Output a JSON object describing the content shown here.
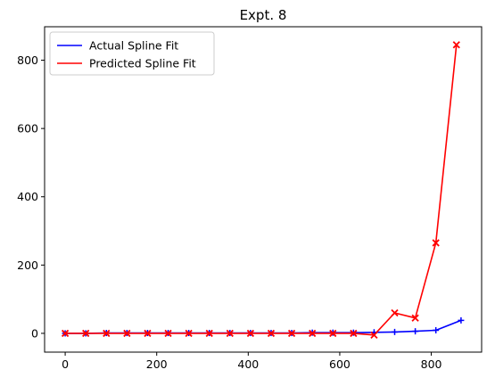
{
  "chart_data": {
    "type": "line",
    "title": "Expt. 8",
    "xlabel": "",
    "ylabel": "",
    "xlim": [
      -45,
      910
    ],
    "ylim": [
      -55,
      898
    ],
    "xticks": [
      0,
      200,
      400,
      600,
      800
    ],
    "yticks": [
      0,
      200,
      400,
      600,
      800
    ],
    "grid": false,
    "legend_position": "top-left",
    "series": [
      {
        "name": "Actual Spline Fit",
        "color": "#0000ff",
        "marker": "plus",
        "x": [
          0,
          45,
          90,
          135,
          180,
          225,
          270,
          315,
          360,
          405,
          450,
          495,
          540,
          585,
          630,
          675,
          720,
          765,
          810,
          865
        ],
        "y": [
          0,
          0,
          1,
          1,
          1,
          1,
          1,
          1,
          1,
          1,
          1,
          1,
          2,
          2,
          2,
          3,
          4,
          6,
          9,
          38
        ]
      },
      {
        "name": "Predicted Spline Fit",
        "color": "#ff0000",
        "marker": "x",
        "x": [
          0,
          45,
          90,
          135,
          180,
          225,
          270,
          315,
          360,
          405,
          450,
          495,
          540,
          585,
          630,
          675,
          720,
          765,
          810,
          855
        ],
        "y": [
          0,
          0,
          0,
          0,
          0,
          0,
          0,
          0,
          0,
          0,
          0,
          0,
          0,
          0,
          0,
          -5,
          60,
          45,
          265,
          845
        ]
      }
    ]
  }
}
